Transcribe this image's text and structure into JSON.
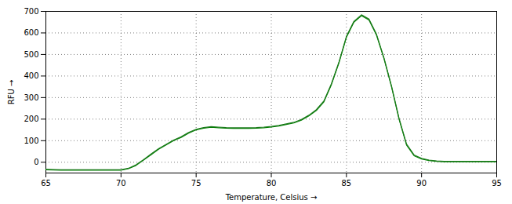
{
  "chart_data": {
    "type": "line",
    "xlabel": "Temperature, Celsius",
    "ylabel": "RFU",
    "x": [
      65.0,
      65.5,
      66.0,
      66.5,
      67.0,
      67.5,
      68.0,
      68.5,
      69.0,
      69.5,
      70.0,
      70.5,
      71.0,
      71.5,
      72.0,
      72.5,
      73.0,
      73.5,
      74.0,
      74.5,
      75.0,
      75.5,
      76.0,
      76.5,
      77.0,
      77.5,
      78.0,
      78.5,
      79.0,
      79.5,
      80.0,
      80.5,
      81.0,
      81.5,
      82.0,
      82.5,
      83.0,
      83.5,
      84.0,
      84.5,
      85.0,
      85.5,
      86.0,
      86.5,
      87.0,
      87.5,
      88.0,
      88.5,
      89.0,
      89.5,
      90.0,
      90.5,
      91.0,
      91.5,
      92.0,
      92.5,
      93.0,
      93.5,
      94.0,
      94.5,
      95.0
    ],
    "series": [
      {
        "color": "#008000",
        "values": [
          -35,
          -36,
          -37,
          -37,
          -37,
          -37,
          -37,
          -37,
          -37,
          -37,
          -37,
          -30,
          -15,
          10,
          35,
          60,
          80,
          100,
          115,
          135,
          150,
          158,
          162,
          160,
          158,
          157,
          157,
          157,
          158,
          160,
          163,
          168,
          175,
          182,
          195,
          215,
          240,
          280,
          360,
          460,
          580,
          650,
          680,
          660,
          590,
          480,
          350,
          200,
          80,
          30,
          15,
          8,
          4,
          2,
          2,
          2,
          2,
          2,
          2,
          2,
          2
        ]
      },
      {
        "color": "#1a7a1a",
        "values": [
          -33,
          -34,
          -35,
          -35,
          -35,
          -35,
          -35,
          -35,
          -35,
          -35,
          -35,
          -28,
          -12,
          12,
          38,
          63,
          83,
          103,
          118,
          138,
          153,
          161,
          165,
          163,
          161,
          160,
          160,
          160,
          161,
          163,
          166,
          171,
          178,
          185,
          198,
          218,
          244,
          284,
          364,
          464,
          584,
          654,
          684,
          664,
          594,
          484,
          354,
          204,
          84,
          34,
          18,
          10,
          6,
          4,
          4,
          4,
          4,
          4,
          4,
          4,
          4
        ]
      }
    ],
    "xlim": [
      65,
      95
    ],
    "ylim": [
      -50,
      700
    ],
    "xticks": [
      65,
      70,
      75,
      80,
      85,
      90,
      95
    ],
    "yticks": [
      0,
      100,
      200,
      300,
      400,
      500,
      600,
      700
    ],
    "grid": true
  }
}
